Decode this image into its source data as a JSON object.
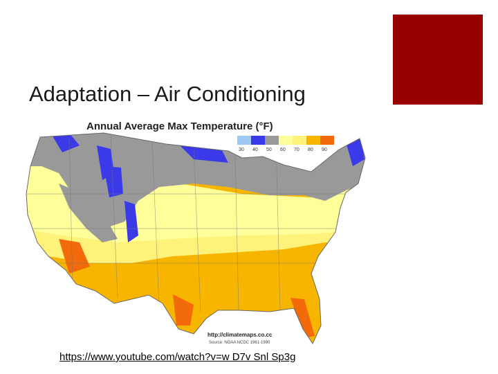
{
  "slide": {
    "title": "Adaptation – Air Conditioning",
    "link_text": "https://www.youtube.com/watch?v=w D7v Snl Sp3g",
    "accent_color": "#990000"
  },
  "map": {
    "title": "Annual Average Max Temperature (°F)",
    "credit_url": "http://climatemaps.co.cc",
    "credit_source": "Source: NOAA NCDC 1961-1990",
    "legend": [
      {
        "label": "30",
        "color": "#9ec9f5"
      },
      {
        "label": "40",
        "color": "#3a3ae8"
      },
      {
        "label": "50",
        "color": "#999999"
      },
      {
        "label": "60",
        "color": "#ffff99"
      },
      {
        "label": "70",
        "color": "#fff27a"
      },
      {
        "label": "80",
        "color": "#f7b500"
      },
      {
        "label": "90",
        "color": "#f26a0a"
      }
    ]
  }
}
